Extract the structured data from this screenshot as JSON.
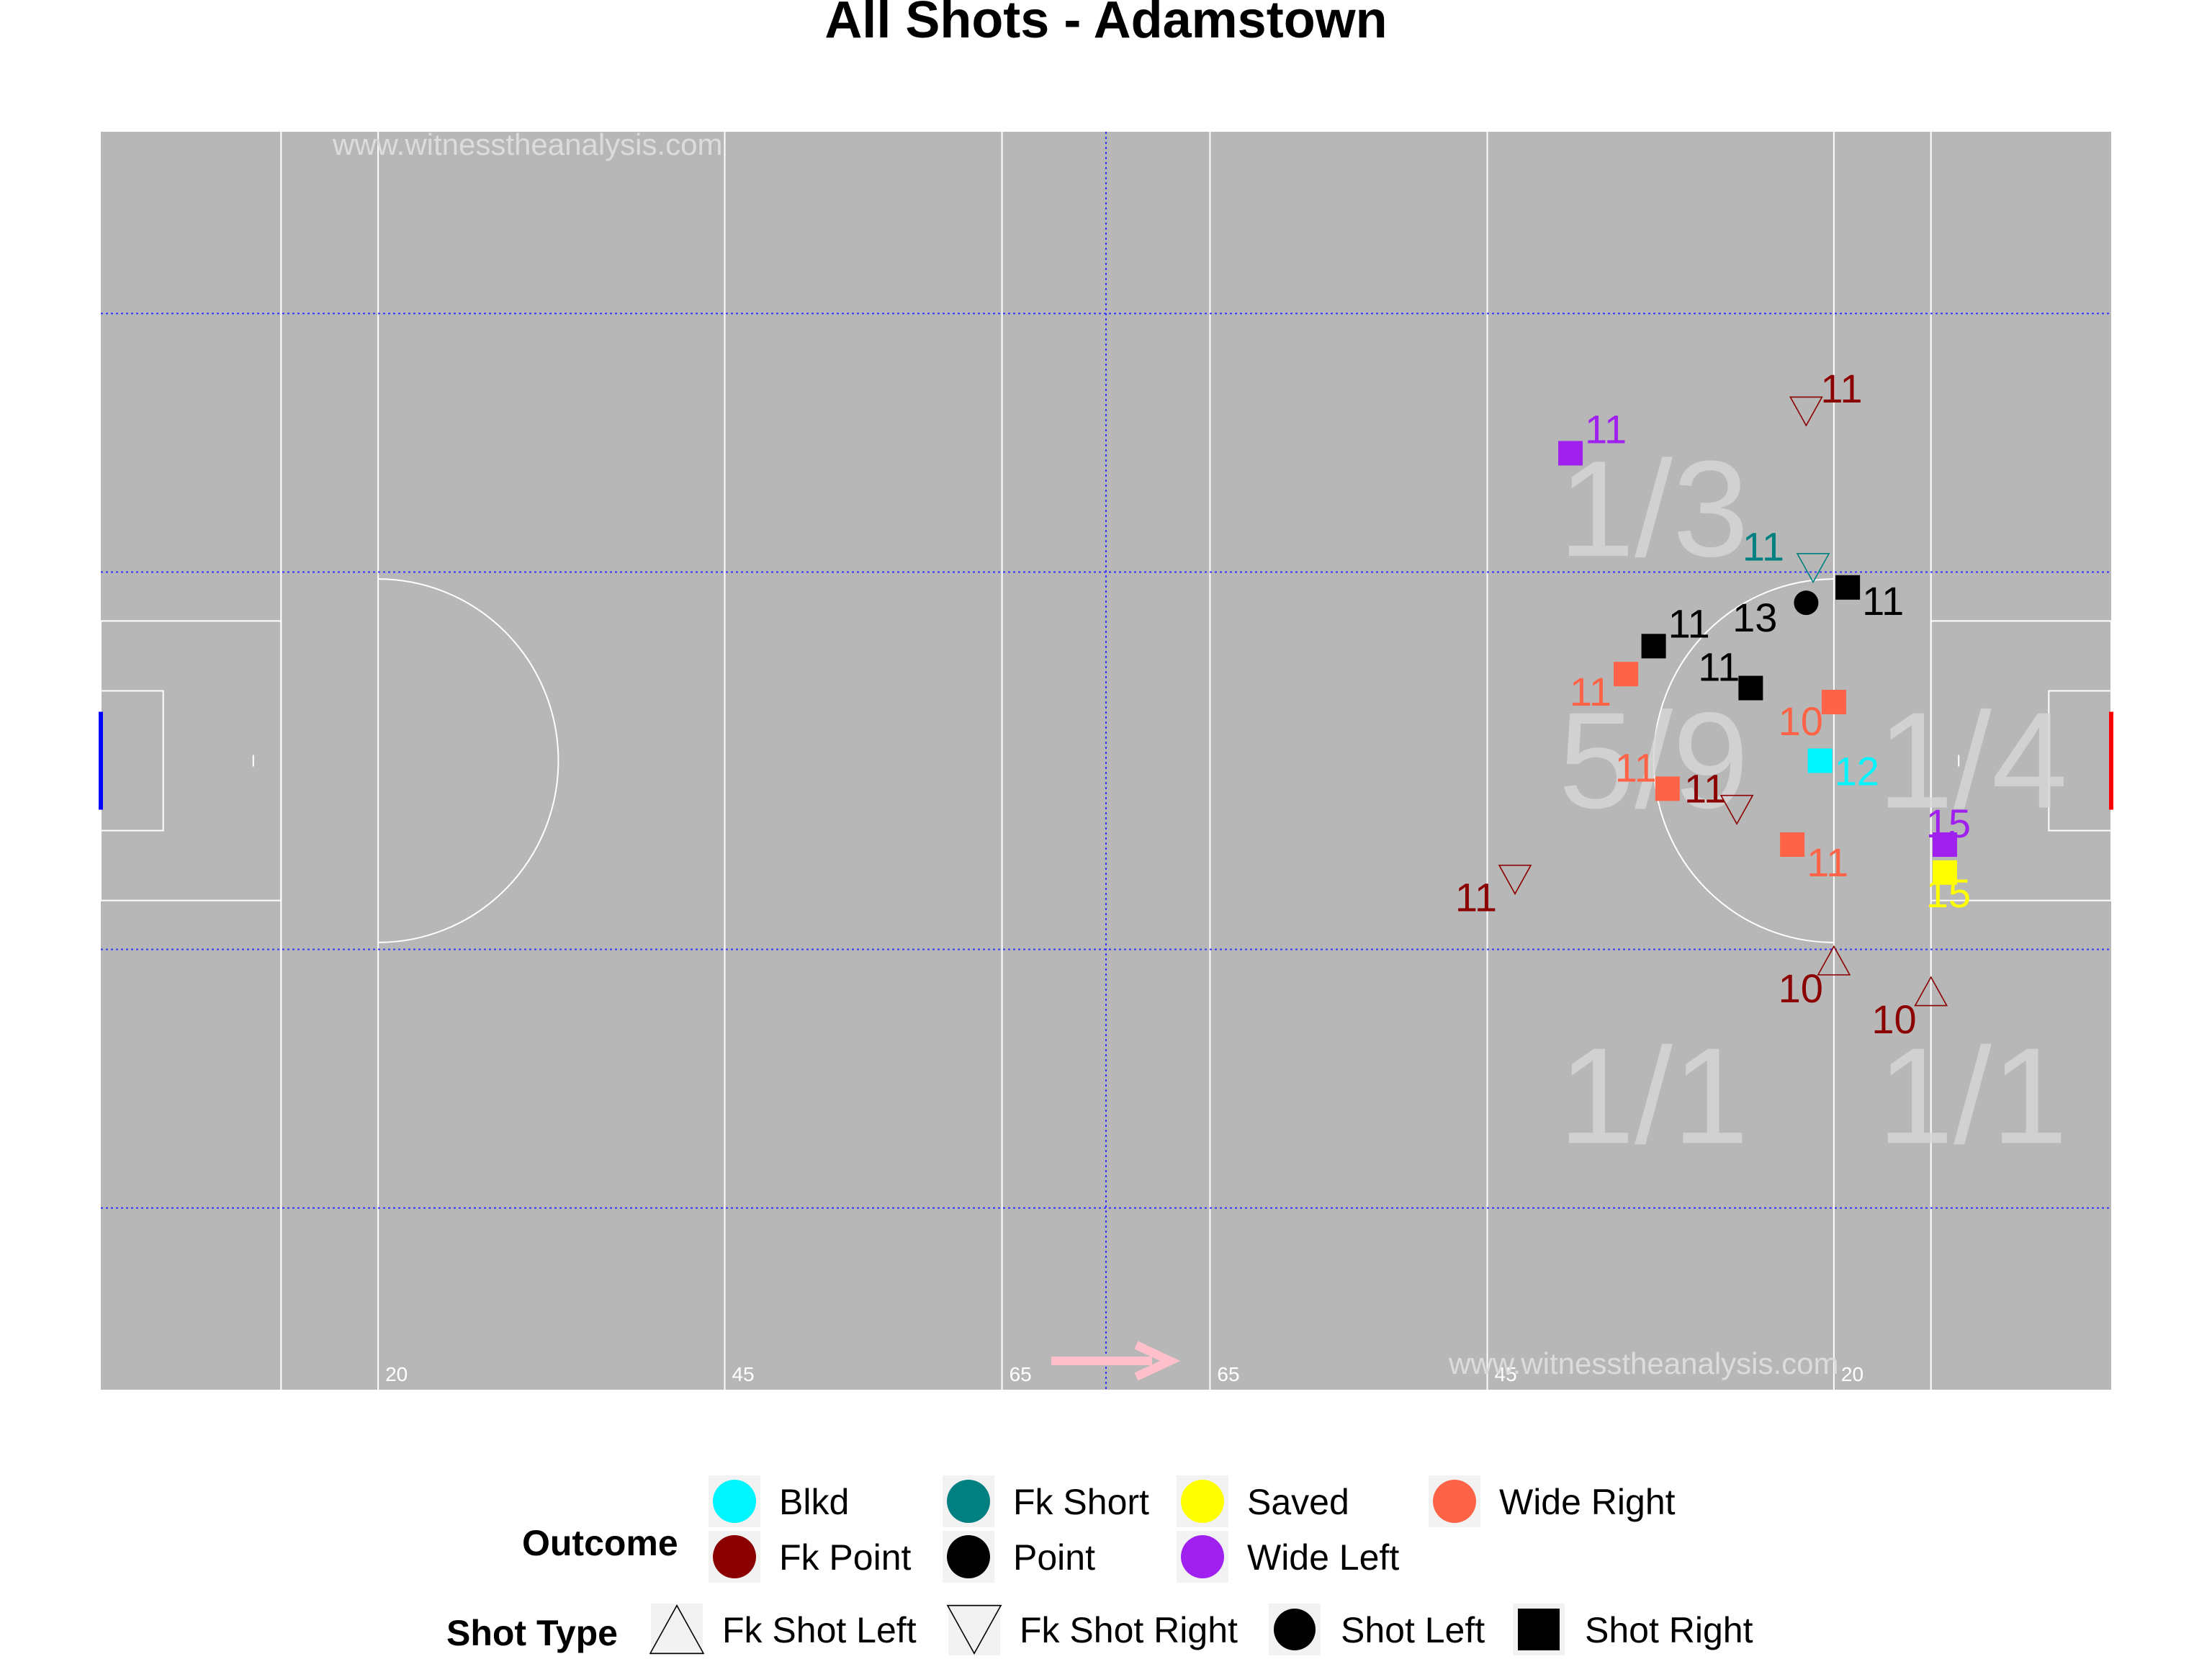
{
  "chart_data": {
    "type": "scatter",
    "title": "All Shots - Adamstown",
    "watermark": "www.witnesstheanalysis.com",
    "pitch": {
      "length": 145,
      "width": 90,
      "attack_direction": "right"
    },
    "distance_labels": [
      "20",
      "45",
      "65",
      "65",
      "45",
      "20"
    ],
    "zone_labels": [
      {
        "text": "1/3",
        "x": 112,
        "y": 63
      },
      {
        "text": "5/9",
        "x": 112,
        "y": 45
      },
      {
        "text": "1/4",
        "x": 135,
        "y": 45
      },
      {
        "text": "1/1",
        "x": 112,
        "y": 21
      },
      {
        "text": "1/1",
        "x": 135,
        "y": 21
      }
    ],
    "outcome_colors": {
      "Blkd": "#00f5ff",
      "Fk Point": "#8b0000",
      "Fk Short": "#008080",
      "Point": "#000000",
      "Saved": "#ffff00",
      "Wide Left": "#a020f0",
      "Wide Right": "#ff6347"
    },
    "points": [
      {
        "x": 123.0,
        "y": 70.0,
        "outcome": "Fk Point",
        "shot_type": "Fk Shot Right",
        "label": "11"
      },
      {
        "x": 106.0,
        "y": 67.0,
        "outcome": "Wide Left",
        "shot_type": "Shot Right",
        "label": "11"
      },
      {
        "x": 123.5,
        "y": 58.8,
        "outcome": "Fk Short",
        "shot_type": "Fk Shot Right",
        "label": "11"
      },
      {
        "x": 126.0,
        "y": 57.4,
        "outcome": "Point",
        "shot_type": "Shot Right",
        "label": "11"
      },
      {
        "x": 123.0,
        "y": 56.3,
        "outcome": "Point",
        "shot_type": "Shot Left",
        "label": "13"
      },
      {
        "x": 112.0,
        "y": 53.2,
        "outcome": "Point",
        "shot_type": "Shot Right",
        "label": "11"
      },
      {
        "x": 110.0,
        "y": 51.2,
        "outcome": "Wide Right",
        "shot_type": "Shot Right",
        "label": "11"
      },
      {
        "x": 119.0,
        "y": 50.2,
        "outcome": "Point",
        "shot_type": "Shot Right",
        "label": "11"
      },
      {
        "x": 125.0,
        "y": 49.2,
        "outcome": "Wide Right",
        "shot_type": "Shot Right",
        "label": "10"
      },
      {
        "x": 124.0,
        "y": 45.0,
        "outcome": "Blkd",
        "shot_type": "Shot Right",
        "label": "12"
      },
      {
        "x": 113.0,
        "y": 43.0,
        "outcome": "Wide Right",
        "shot_type": "Shot Right",
        "label": "11"
      },
      {
        "x": 118.0,
        "y": 41.5,
        "outcome": "Fk Point",
        "shot_type": "Fk Shot Right",
        "label": "11"
      },
      {
        "x": 102.0,
        "y": 36.5,
        "outcome": "Fk Point",
        "shot_type": "Fk Shot Right",
        "label": "11"
      },
      {
        "x": 122.0,
        "y": 39.0,
        "outcome": "Wide Right",
        "shot_type": "Shot Right",
        "label": "11"
      },
      {
        "x": 133.0,
        "y": 39.0,
        "outcome": "Wide Left",
        "shot_type": "Shot Right",
        "label": "15"
      },
      {
        "x": 133.0,
        "y": 37.0,
        "outcome": "Saved",
        "shot_type": "Shot Right",
        "label": "15"
      },
      {
        "x": 125.0,
        "y": 30.7,
        "outcome": "Fk Point",
        "shot_type": "Fk Shot Left",
        "label": "10"
      },
      {
        "x": 132.0,
        "y": 28.5,
        "outcome": "Fk Point",
        "shot_type": "Fk Shot Left",
        "label": "10"
      }
    ],
    "legend": {
      "outcome_title": "Outcome",
      "outcomes": [
        "Blkd",
        "Fk Point",
        "Fk Short",
        "Point",
        "Saved",
        "Wide Left",
        "Wide Right"
      ],
      "shot_type_title": "Shot Type",
      "shot_types": [
        "Fk Shot Left",
        "Fk Shot Right",
        "Shot Left",
        "Shot Right"
      ]
    },
    "xlim": [
      0,
      145
    ],
    "ylim": [
      0,
      90
    ]
  }
}
